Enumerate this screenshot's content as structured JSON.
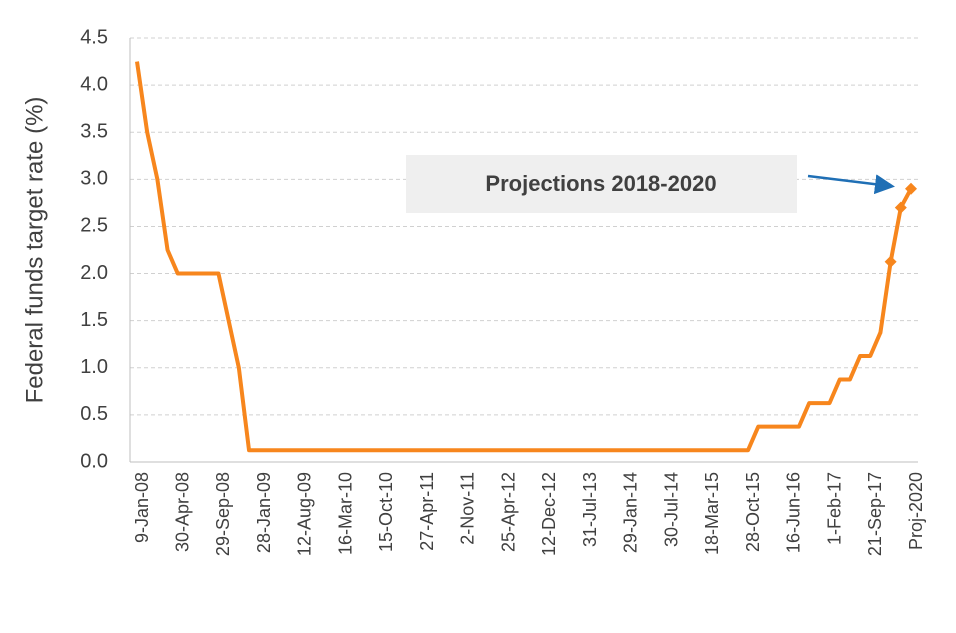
{
  "chart_data": {
    "type": "line",
    "y_label": "Federal funds target rate (%)",
    "categories": [
      "9-Jan-08",
      null,
      null,
      null,
      "30-Apr-08",
      null,
      null,
      null,
      "29-Sep-08",
      null,
      null,
      null,
      "28-Jan-09",
      null,
      null,
      null,
      "12-Aug-09",
      null,
      null,
      null,
      "16-Mar-10",
      null,
      null,
      null,
      "15-Oct-10",
      null,
      null,
      null,
      "27-Apr-11",
      null,
      null,
      null,
      "2-Nov-11",
      null,
      null,
      null,
      "25-Apr-12",
      null,
      null,
      null,
      "12-Dec-12",
      null,
      null,
      null,
      "31-Jul-13",
      null,
      null,
      null,
      "29-Jan-14",
      null,
      null,
      null,
      "30-Jul-14",
      null,
      null,
      null,
      "18-Mar-15",
      null,
      null,
      null,
      "28-Oct-15",
      null,
      null,
      null,
      "16-Jun-16",
      null,
      null,
      null,
      "1-Feb-17",
      null,
      null,
      null,
      "21-Sep-17",
      null,
      null,
      null,
      "Proj-2020"
    ],
    "series": [
      {
        "color": "#f7861d",
        "values": [
          4.25,
          3.5,
          3.0,
          2.25,
          2.0,
          2.0,
          2.0,
          2.0,
          2.0,
          1.5,
          1.0,
          0.125,
          0.125,
          0.125,
          0.125,
          0.125,
          0.125,
          0.125,
          0.125,
          0.125,
          0.125,
          0.125,
          0.125,
          0.125,
          0.125,
          0.125,
          0.125,
          0.125,
          0.125,
          0.125,
          0.125,
          0.125,
          0.125,
          0.125,
          0.125,
          0.125,
          0.125,
          0.125,
          0.125,
          0.125,
          0.125,
          0.125,
          0.125,
          0.125,
          0.125,
          0.125,
          0.125,
          0.125,
          0.125,
          0.125,
          0.125,
          0.125,
          0.125,
          0.125,
          0.125,
          0.125,
          0.125,
          0.125,
          0.125,
          0.125,
          0.125,
          0.375,
          0.375,
          0.375,
          0.375,
          0.375,
          0.625,
          0.625,
          0.625,
          0.875,
          0.875,
          1.125,
          1.125,
          1.375,
          null,
          null,
          null
        ]
      },
      {
        "color": "#f7861d",
        "marker": "diamond",
        "values": [
          null,
          null,
          null,
          null,
          null,
          null,
          null,
          null,
          null,
          null,
          null,
          null,
          null,
          null,
          null,
          null,
          null,
          null,
          null,
          null,
          null,
          null,
          null,
          null,
          null,
          null,
          null,
          null,
          null,
          null,
          null,
          null,
          null,
          null,
          null,
          null,
          null,
          null,
          null,
          null,
          null,
          null,
          null,
          null,
          null,
          null,
          null,
          null,
          null,
          null,
          null,
          null,
          null,
          null,
          null,
          null,
          null,
          null,
          null,
          null,
          null,
          null,
          null,
          null,
          null,
          null,
          null,
          null,
          null,
          null,
          null,
          null,
          null,
          null,
          2.125,
          2.7,
          2.9
        ]
      }
    ],
    "ylim": [
      0,
      4.5
    ],
    "yticks": [
      {
        "value": 0,
        "label": "0.0"
      },
      0.5,
      {
        "value": 1,
        "label": "1.0"
      },
      1.5,
      {
        "value": 2,
        "label": "2.0"
      },
      2.5,
      {
        "value": 3,
        "label": "3.0"
      },
      3.5,
      {
        "value": 4,
        "label": "4.0"
      },
      4.5
    ],
    "grid": true,
    "annotation": {
      "text": "Projections 2018-2020",
      "color": "#f07f09",
      "box_color": "#efefef",
      "arrow_color": "#1f6fb5"
    }
  }
}
